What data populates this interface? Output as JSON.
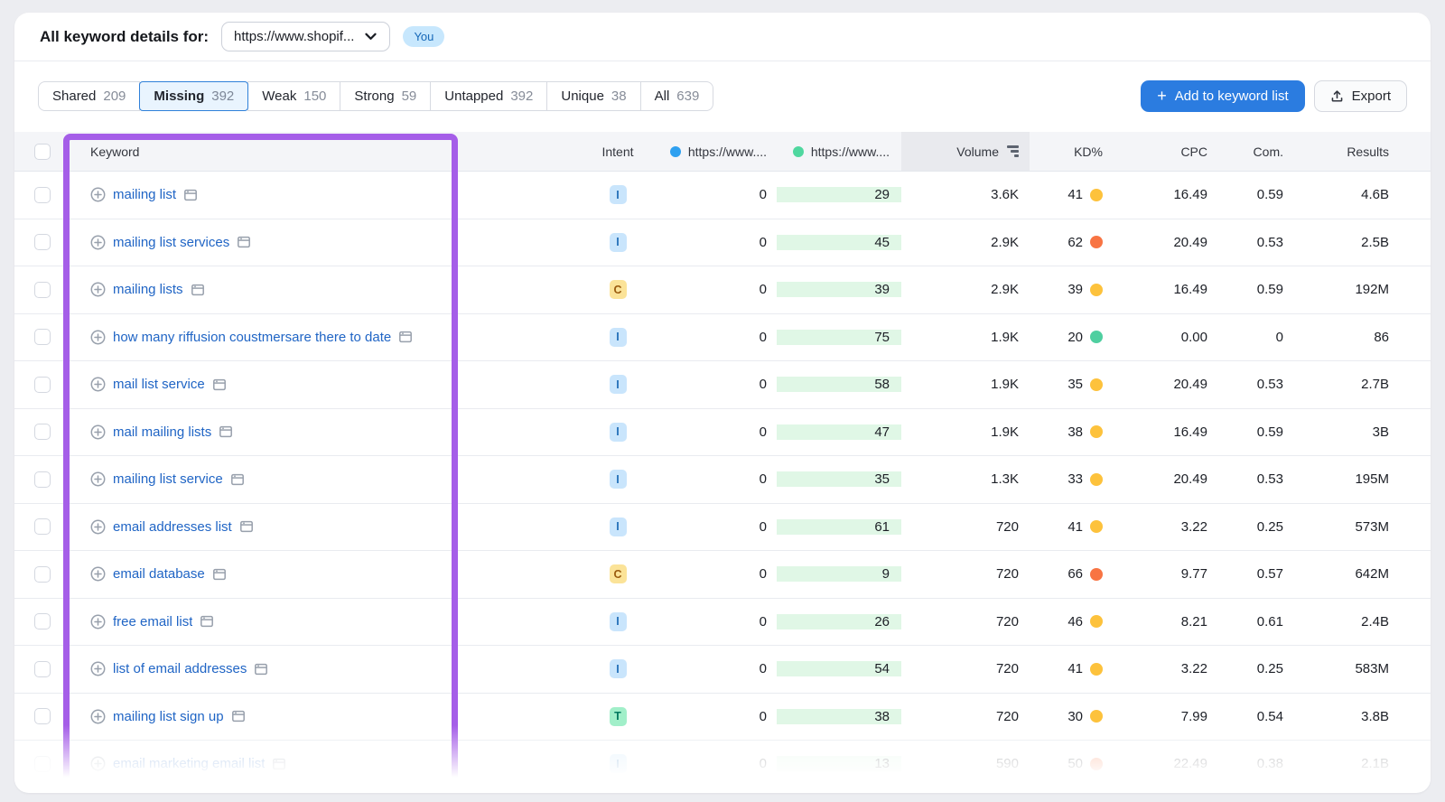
{
  "header": {
    "title": "All keyword details for:",
    "domain_select_value": "https://www.shopif...",
    "you_badge": "You"
  },
  "toolbar": {
    "tabs": [
      {
        "label": "Shared",
        "count": "209",
        "active": false
      },
      {
        "label": "Missing",
        "count": "392",
        "active": true
      },
      {
        "label": "Weak",
        "count": "150",
        "active": false
      },
      {
        "label": "Strong",
        "count": "59",
        "active": false
      },
      {
        "label": "Untapped",
        "count": "392",
        "active": false
      },
      {
        "label": "Unique",
        "count": "38",
        "active": false
      },
      {
        "label": "All",
        "count": "639",
        "active": false
      }
    ],
    "add_button_label": "Add to keyword list",
    "export_button_label": "Export"
  },
  "table": {
    "columns": {
      "keyword": "Keyword",
      "intent": "Intent",
      "competitor1": "https://www....",
      "competitor2": "https://www....",
      "volume": "Volume",
      "kd": "KD%",
      "cpc": "CPC",
      "com": "Com.",
      "results": "Results"
    },
    "rows": [
      {
        "keyword": "mailing list",
        "intent": "I",
        "you_value": "0",
        "competitor_value": "29",
        "volume": "3.6K",
        "kd": "41",
        "kd_level": "possible",
        "cpc": "16.49",
        "com": "0.59",
        "results": "4.6B"
      },
      {
        "keyword": "mailing list services",
        "intent": "I",
        "you_value": "0",
        "competitor_value": "45",
        "volume": "2.9K",
        "kd": "62",
        "kd_level": "difficult",
        "cpc": "20.49",
        "com": "0.53",
        "results": "2.5B"
      },
      {
        "keyword": "mailing lists",
        "intent": "C",
        "you_value": "0",
        "competitor_value": "39",
        "volume": "2.9K",
        "kd": "39",
        "kd_level": "possible",
        "cpc": "16.49",
        "com": "0.59",
        "results": "192M"
      },
      {
        "keyword": "how many riffusion coustmersare there to date",
        "intent": "I",
        "you_value": "0",
        "competitor_value": "75",
        "volume": "1.9K",
        "kd": "20",
        "kd_level": "easy",
        "cpc": "0.00",
        "com": "0",
        "results": "86"
      },
      {
        "keyword": "mail list service",
        "intent": "I",
        "you_value": "0",
        "competitor_value": "58",
        "volume": "1.9K",
        "kd": "35",
        "kd_level": "possible",
        "cpc": "20.49",
        "com": "0.53",
        "results": "2.7B"
      },
      {
        "keyword": "mail mailing lists",
        "intent": "I",
        "you_value": "0",
        "competitor_value": "47",
        "volume": "1.9K",
        "kd": "38",
        "kd_level": "possible",
        "cpc": "16.49",
        "com": "0.59",
        "results": "3B"
      },
      {
        "keyword": "mailing list service",
        "intent": "I",
        "you_value": "0",
        "competitor_value": "35",
        "volume": "1.3K",
        "kd": "33",
        "kd_level": "possible",
        "cpc": "20.49",
        "com": "0.53",
        "results": "195M"
      },
      {
        "keyword": "email addresses list",
        "intent": "I",
        "you_value": "0",
        "competitor_value": "61",
        "volume": "720",
        "kd": "41",
        "kd_level": "possible",
        "cpc": "3.22",
        "com": "0.25",
        "results": "573M"
      },
      {
        "keyword": "email database",
        "intent": "C",
        "you_value": "0",
        "competitor_value": "9",
        "volume": "720",
        "kd": "66",
        "kd_level": "difficult",
        "cpc": "9.77",
        "com": "0.57",
        "results": "642M"
      },
      {
        "keyword": "free email list",
        "intent": "I",
        "you_value": "0",
        "competitor_value": "26",
        "volume": "720",
        "kd": "46",
        "kd_level": "possible",
        "cpc": "8.21",
        "com": "0.61",
        "results": "2.4B"
      },
      {
        "keyword": "list of email addresses",
        "intent": "I",
        "you_value": "0",
        "competitor_value": "54",
        "volume": "720",
        "kd": "41",
        "kd_level": "possible",
        "cpc": "3.22",
        "com": "0.25",
        "results": "583M"
      },
      {
        "keyword": "mailing list sign up",
        "intent": "T",
        "you_value": "0",
        "competitor_value": "38",
        "volume": "720",
        "kd": "30",
        "kd_level": "possible",
        "cpc": "7.99",
        "com": "0.54",
        "results": "3.8B"
      },
      {
        "keyword": "email marketing email list",
        "intent": "I",
        "you_value": "0",
        "competitor_value": "13",
        "volume": "590",
        "kd": "50",
        "kd_level": "difficult",
        "cpc": "22.49",
        "com": "0.38",
        "results": "2.1B",
        "faded": true
      }
    ]
  },
  "colors": {
    "accent_blue": "#2b7ce0",
    "highlight_purple": "#a55ee8",
    "competitor_column_green": "#e0f7e6",
    "active_tab_bg": "#e9f4fe",
    "kd_possible": "#fdc23c",
    "kd_difficult": "#f87443",
    "kd_easy": "#4fcfa0",
    "intent_informational_bg": "#c9e5fc",
    "intent_commercial_bg": "#fbe398",
    "intent_transactional_bg": "#a1efc9",
    "you_dot_blue": "#2ea0f0",
    "competitor_dot_green": "#4fd79f"
  }
}
